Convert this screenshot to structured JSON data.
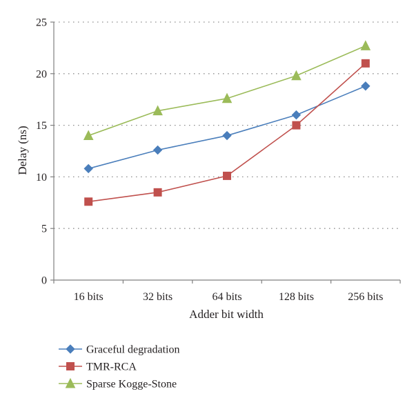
{
  "chart_data": {
    "type": "line",
    "title": "",
    "xlabel": "Adder bit width",
    "ylabel": "Delay (ns)",
    "categories": [
      "16 bits",
      "32 bits",
      "64 bits",
      "128 bits",
      "256 bits"
    ],
    "ylim": [
      0,
      25
    ],
    "yticks": [
      0,
      5,
      10,
      15,
      20,
      25
    ],
    "grid": "horizontal-dotted",
    "legend": "bottom-left",
    "series": [
      {
        "name": "Graceful degradation",
        "values": [
          10.8,
          12.6,
          14.0,
          16.0,
          18.8
        ],
        "color": "#4a7ebb",
        "marker": "diamond"
      },
      {
        "name": "TMR-RCA",
        "values": [
          7.6,
          8.5,
          10.1,
          15.0,
          21.0
        ],
        "color": "#c0504d",
        "marker": "square"
      },
      {
        "name": "Sparse Kogge-Stone",
        "values": [
          14.0,
          16.4,
          17.6,
          19.8,
          22.7
        ],
        "color": "#9bbb59",
        "marker": "triangle"
      }
    ]
  }
}
